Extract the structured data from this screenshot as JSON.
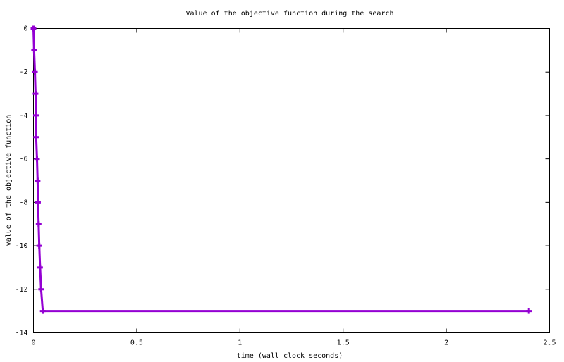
{
  "chart_data": {
    "type": "line",
    "title": "Value of the objective function during the search",
    "x_label": "time (wall clock seconds)",
    "y_label": "value of the objective function",
    "x": [
      0,
      0.003,
      0.007,
      0.01,
      0.012,
      0.013,
      0.017,
      0.02,
      0.022,
      0.025,
      0.028,
      0.032,
      0.037,
      0.045,
      2.4
    ],
    "values": [
      0,
      -1,
      -2,
      -3,
      -4,
      -5,
      -6,
      -7,
      -8,
      -9,
      -10,
      -11,
      -12,
      -13,
      -13
    ],
    "color": "#9400d3",
    "xlim": [
      0,
      2.5
    ],
    "xticks": [
      0,
      0.5,
      1,
      1.5,
      2,
      2.5
    ],
    "ylim": [
      -14,
      0
    ],
    "yticks": [
      0,
      -2,
      -4,
      -6,
      -8,
      -10,
      -12,
      -14
    ],
    "grid": false
  }
}
